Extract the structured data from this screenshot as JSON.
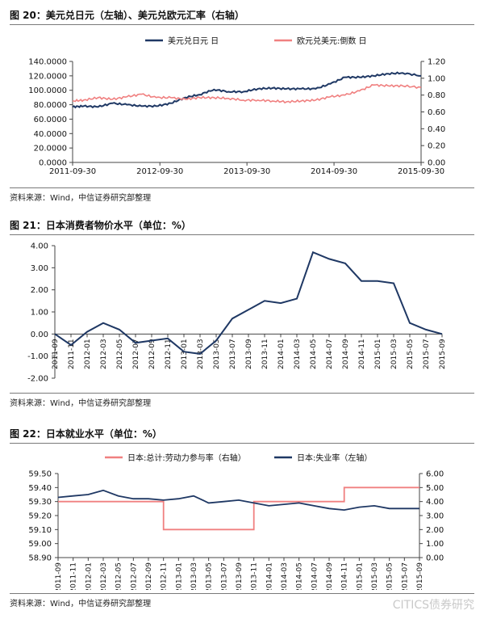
{
  "figures": [
    {
      "title": "图 20：美元兑日元（左轴）、美元兑欧元汇率（右轴）",
      "source": "资料来源：Wind，中信证券研究部整理"
    },
    {
      "title": "图 21：日本消费者物价水平（单位：%）",
      "source": "资料来源：Wind，中信证券研究部整理"
    },
    {
      "title": "图 22：日本就业水平（单位：%）",
      "source": "资料来源：Wind，中信证券研究部整理"
    }
  ],
  "watermark": "CITICS债券研究",
  "chart_data": [
    {
      "type": "line",
      "title": "",
      "legend_position": "top",
      "x_ticks": [
        "2011-09-30",
        "2012-09-30",
        "2013-09-30",
        "2014-09-30",
        "2015-09-30"
      ],
      "y_left": {
        "ylim": [
          0,
          140
        ],
        "ticks": [
          "0.0000",
          "20.0000",
          "40.0000",
          "60.0000",
          "80.0000",
          "100.0000",
          "120.0000",
          "140.0000"
        ]
      },
      "y_right": {
        "ylim": [
          0,
          1.2
        ],
        "ticks": [
          "0.00",
          "0.20",
          "0.40",
          "0.60",
          "0.80",
          "1.00",
          "1.20"
        ]
      },
      "series": [
        {
          "name": "美元兑日元 日",
          "axis": "left",
          "color": "#1f3864",
          "x": [
            "2011-09-30",
            "2011-11",
            "2012-01",
            "2012-03",
            "2012-05",
            "2012-07",
            "2012-09",
            "2012-11",
            "2013-01",
            "2013-03",
            "2013-05",
            "2013-07",
            "2013-09",
            "2013-11",
            "2014-01",
            "2014-03",
            "2014-05",
            "2014-07",
            "2014-09",
            "2014-11",
            "2015-01",
            "2015-03",
            "2015-05",
            "2015-07",
            "2015-09-30"
          ],
          "values": [
            77,
            78,
            77,
            82,
            80,
            78,
            78,
            82,
            90,
            94,
            101,
            98,
            98,
            102,
            103,
            102,
            102,
            102,
            109,
            118,
            118,
            120,
            123,
            124,
            120
          ]
        },
        {
          "name": "欧元兑美元:倒数 日",
          "axis": "right",
          "color": "#f08080",
          "x": [
            "2011-09-30",
            "2011-11",
            "2012-01",
            "2012-03",
            "2012-05",
            "2012-07",
            "2012-09",
            "2012-11",
            "2013-01",
            "2013-03",
            "2013-05",
            "2013-07",
            "2013-09",
            "2013-11",
            "2014-01",
            "2014-03",
            "2014-05",
            "2014-07",
            "2014-09",
            "2014-11",
            "2015-01",
            "2015-03",
            "2015-05",
            "2015-07",
            "2015-09-30"
          ],
          "values": [
            0.73,
            0.74,
            0.77,
            0.75,
            0.78,
            0.81,
            0.77,
            0.77,
            0.75,
            0.77,
            0.77,
            0.76,
            0.74,
            0.74,
            0.73,
            0.72,
            0.73,
            0.74,
            0.78,
            0.8,
            0.85,
            0.92,
            0.91,
            0.91,
            0.89
          ]
        }
      ]
    },
    {
      "type": "line",
      "title": "",
      "categories": [
        "2011-09",
        "2011-11",
        "2012-01",
        "2012-03",
        "2012-05",
        "2012-07",
        "2012-09",
        "2012-11",
        "2013-01",
        "2013-03",
        "2013-05",
        "2013-07",
        "2013-09",
        "2013-11",
        "2014-01",
        "2014-03",
        "2014-05",
        "2014-07",
        "2014-09",
        "2014-11",
        "2015-01",
        "2015-03",
        "2015-05",
        "2015-07",
        "2015-09"
      ],
      "ylim": [
        -2,
        4
      ],
      "y_ticks": [
        "-2.00",
        "-1.00",
        "0.00",
        "1.00",
        "2.00",
        "3.00",
        "4.00"
      ],
      "series": [
        {
          "name": "",
          "color": "#1f3864",
          "values": [
            0.0,
            -0.5,
            0.1,
            0.5,
            0.2,
            -0.4,
            -0.3,
            -0.2,
            -0.8,
            -0.9,
            -0.3,
            0.7,
            1.1,
            1.5,
            1.4,
            1.6,
            3.7,
            3.4,
            3.2,
            2.4,
            2.4,
            2.3,
            0.5,
            0.2,
            0.0
          ]
        }
      ]
    },
    {
      "type": "line",
      "title": "",
      "legend_position": "top",
      "categories": [
        "2011-09",
        "2011-11",
        "2012-01",
        "2012-03",
        "2012-05",
        "2012-07",
        "2012-09",
        "2012-11",
        "2013-01",
        "2013-03",
        "2013-05",
        "2013-07",
        "2013-09",
        "2013-11",
        "2014-01",
        "2014-03",
        "2014-05",
        "2014-07",
        "2014-09",
        "2014-11",
        "2015-01",
        "2015-03",
        "2015-05",
        "2015-07",
        "2015-09"
      ],
      "y_left": {
        "ylim": [
          58.9,
          59.5
        ],
        "ticks": [
          "58.90",
          "59.00",
          "59.10",
          "59.20",
          "59.30",
          "59.40",
          "59.50"
        ]
      },
      "y_right": {
        "ylim": [
          0,
          6
        ],
        "ticks": [
          "0.00",
          "1.00",
          "2.00",
          "3.00",
          "4.00",
          "5.00",
          "6.00"
        ]
      },
      "series": [
        {
          "name": "日本:总计:劳动力参与率（右轴）",
          "axis": "right",
          "color": "#f08080",
          "values": [
            4,
            4,
            4,
            4,
            4,
            4,
            4,
            2,
            2,
            2,
            2,
            2,
            2,
            4,
            4,
            4,
            4,
            4,
            4,
            5,
            5,
            5,
            5,
            5,
            5
          ]
        },
        {
          "name": "日本:失业率（左轴）",
          "axis": "left",
          "color": "#1f3864",
          "values": [
            59.33,
            59.34,
            59.35,
            59.38,
            59.34,
            59.32,
            59.32,
            59.31,
            59.32,
            59.34,
            59.29,
            59.3,
            59.31,
            59.29,
            59.27,
            59.28,
            59.29,
            59.27,
            59.25,
            59.24,
            59.26,
            59.27,
            59.25,
            59.25,
            59.25
          ]
        }
      ]
    }
  ]
}
